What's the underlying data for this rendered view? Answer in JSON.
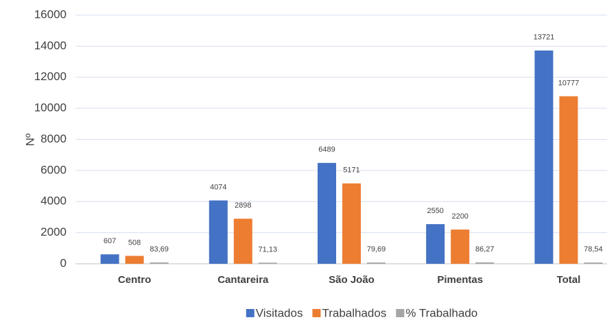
{
  "chart_data": {
    "type": "bar",
    "y_label": "Nº",
    "categories": [
      "Centro",
      "Cantareira",
      "São João",
      "Pimentas",
      "Total"
    ],
    "series": [
      {
        "name": "Visitados",
        "color": "#4472c4",
        "values": [
          607,
          4074,
          6489,
          2550,
          13721
        ]
      },
      {
        "name": "Trabalhados",
        "color": "#ed7d31",
        "values": [
          508,
          2898,
          5171,
          2200,
          10777
        ]
      },
      {
        "name": "% Trabalhado",
        "color": "#a5a5a5",
        "values": [
          83.69,
          71.13,
          79.69,
          86.27,
          78.54
        ],
        "value_labels": [
          "83,69",
          "71,13",
          "79,69",
          "86,27",
          "78,54"
        ]
      }
    ],
    "ylim": [
      0,
      16000
    ],
    "yticks": [
      0,
      2000,
      4000,
      6000,
      8000,
      10000,
      12000,
      14000,
      16000
    ],
    "grid": true
  }
}
